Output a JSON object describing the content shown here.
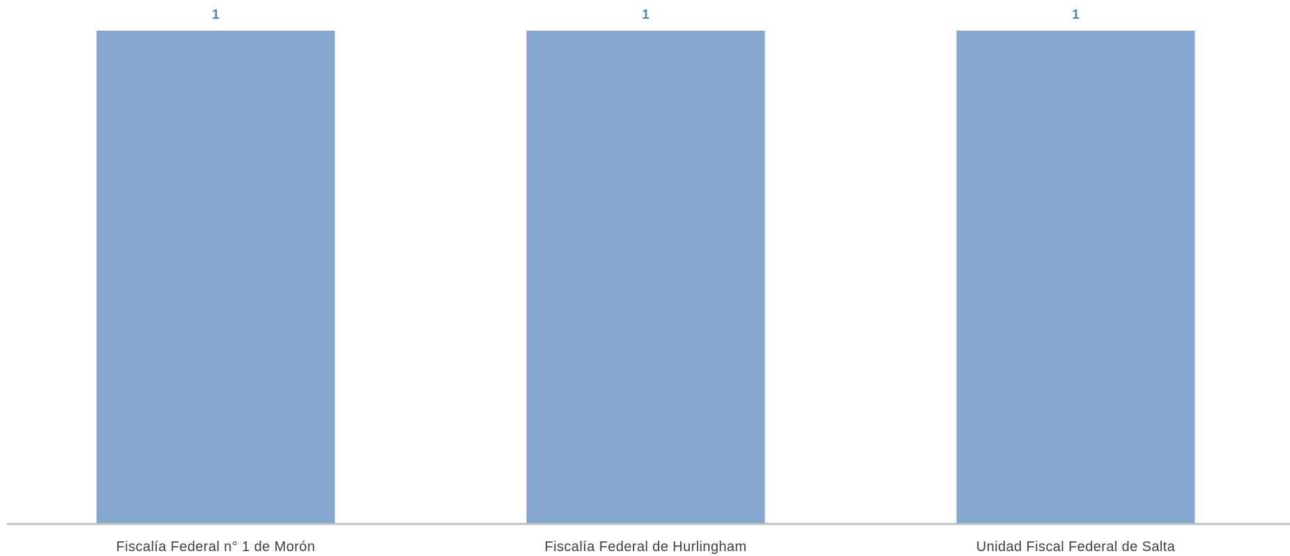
{
  "chart_data": {
    "type": "bar",
    "title": "",
    "xlabel": "",
    "ylabel": "",
    "categories": [
      "Fiscalía Federal n° 1 de Morón",
      "Fiscalía Federal de Hurlingham",
      "Unidad Fiscal Federal de Salta"
    ],
    "values": [
      1,
      1,
      1
    ],
    "data_labels": [
      "1",
      "1",
      "1"
    ],
    "ylim": [
      0,
      1
    ],
    "grid": false,
    "legend": "none",
    "colors": {
      "bar": "#84A6CF",
      "value_label": "#4F81BD",
      "axis_line": "#BFBFBF",
      "category_label": "#404040",
      "background": "#FFFFFF"
    }
  }
}
